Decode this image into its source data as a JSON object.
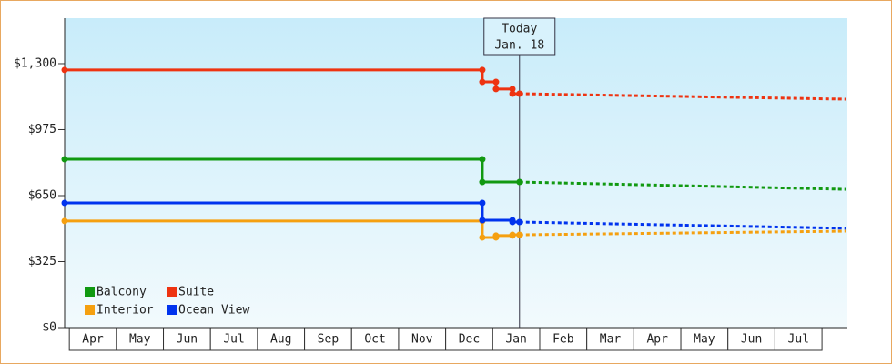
{
  "chart_data": {
    "type": "line",
    "xlim": [
      -0.1,
      16.54
    ],
    "xticks": [
      {
        "value": 0.5,
        "label": "Apr"
      },
      {
        "value": 1.5,
        "label": "May"
      },
      {
        "value": 2.5,
        "label": "Jun"
      },
      {
        "value": 3.5,
        "label": "Jul"
      },
      {
        "value": 4.5,
        "label": "Aug"
      },
      {
        "value": 5.5,
        "label": "Sep"
      },
      {
        "value": 6.5,
        "label": "Oct"
      },
      {
        "value": 7.5,
        "label": "Nov"
      },
      {
        "value": 8.5,
        "label": "Dec"
      },
      {
        "value": 9.5,
        "label": "Jan"
      },
      {
        "value": 10.5,
        "label": "Feb"
      },
      {
        "value": 11.5,
        "label": "Mar"
      },
      {
        "value": 12.5,
        "label": "Apr"
      },
      {
        "value": 13.5,
        "label": "May"
      },
      {
        "value": 14.5,
        "label": "Jun"
      },
      {
        "value": 15.5,
        "label": "Jul"
      }
    ],
    "ylim": [
      0,
      1524
    ],
    "yticks": [
      {
        "value": 0,
        "label": "$0"
      },
      {
        "value": 325,
        "label": "$325"
      },
      {
        "value": 650,
        "label": "$650"
      },
      {
        "value": 975,
        "label": "$975"
      },
      {
        "value": 1300,
        "label": "$1,300"
      }
    ],
    "annotation": {
      "x": 9.57,
      "lines": [
        "Today",
        "Jan. 18"
      ]
    },
    "series": [
      {
        "name": "Balcony",
        "color": "#119911",
        "x": [
          -0.1,
          8.78,
          8.78,
          9.57
        ],
        "values": [
          829,
          829,
          717,
          717
        ],
        "forecast": {
          "x": [
            9.57,
            13.04,
            16.52
          ],
          "values": [
            717,
            699,
            681
          ]
        }
      },
      {
        "name": "Suite",
        "color": "#ee3311",
        "x": [
          -0.1,
          8.78,
          8.78,
          9.07,
          9.07,
          9.42,
          9.42,
          9.57
        ],
        "values": [
          1269,
          1269,
          1210,
          1210,
          1175,
          1175,
          1152,
          1152
        ],
        "forecast": {
          "x": [
            9.57,
            11.88,
            16.52
          ],
          "values": [
            1152,
            1143,
            1125
          ]
        }
      },
      {
        "name": "Interior",
        "color": "#f5a010",
        "x": [
          -0.1,
          8.78,
          8.78,
          9.07,
          9.07,
          9.42,
          9.42,
          9.57
        ],
        "values": [
          525,
          525,
          444,
          444,
          453,
          453,
          457,
          457
        ],
        "forecast": {
          "x": [
            9.57,
            16.52
          ],
          "values": [
            457,
            475
          ]
        }
      },
      {
        "name": "Ocean View",
        "color": "#0033ee",
        "x": [
          -0.1,
          8.78,
          8.78,
          9.42,
          9.42,
          9.57
        ],
        "values": [
          614,
          614,
          529,
          529,
          520,
          520
        ],
        "forecast": {
          "x": [
            9.57,
            16.52
          ],
          "values": [
            520,
            489
          ]
        }
      }
    ]
  }
}
